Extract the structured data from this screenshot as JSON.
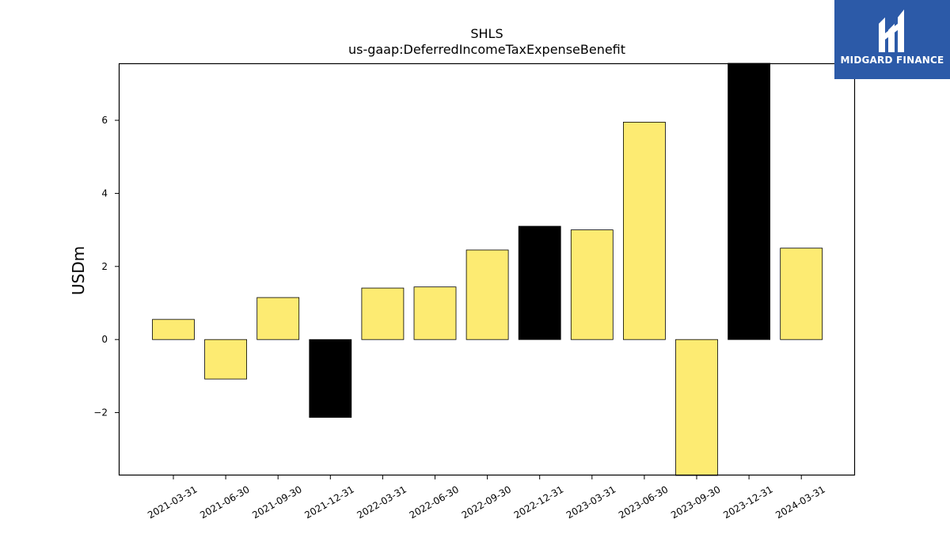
{
  "chart_data": {
    "type": "bar",
    "title": "SHLS",
    "subtitle": "us-gaap:DeferredIncomeTaxExpenseBenefit",
    "xlabel": "",
    "ylabel": "USDm",
    "categories": [
      "2021-03-31",
      "2021-06-30",
      "2021-09-30",
      "2021-12-31",
      "2022-03-31",
      "2022-06-30",
      "2022-09-30",
      "2022-12-31",
      "2023-03-31",
      "2023-06-30",
      "2023-09-30",
      "2023-12-31",
      "2024-03-31"
    ],
    "values": [
      0.55,
      -1.08,
      1.15,
      -2.13,
      1.41,
      1.44,
      2.45,
      3.1,
      3.0,
      5.95,
      -3.8,
      7.6,
      2.5
    ],
    "highlight": [
      false,
      false,
      false,
      true,
      false,
      false,
      false,
      true,
      false,
      false,
      false,
      true,
      false
    ],
    "bar_color": "#fdeb72",
    "highlight_color": "#000000",
    "ylim": [
      -3.72,
      7.56
    ],
    "yticks": [
      -2,
      0,
      2,
      4,
      6
    ],
    "ytick_labels": [
      "−2",
      "0",
      "2",
      "4",
      "6"
    ],
    "grid": false
  },
  "logo": {
    "text": "MIDGARD FINANCE",
    "background": "#2c5aa8"
  }
}
